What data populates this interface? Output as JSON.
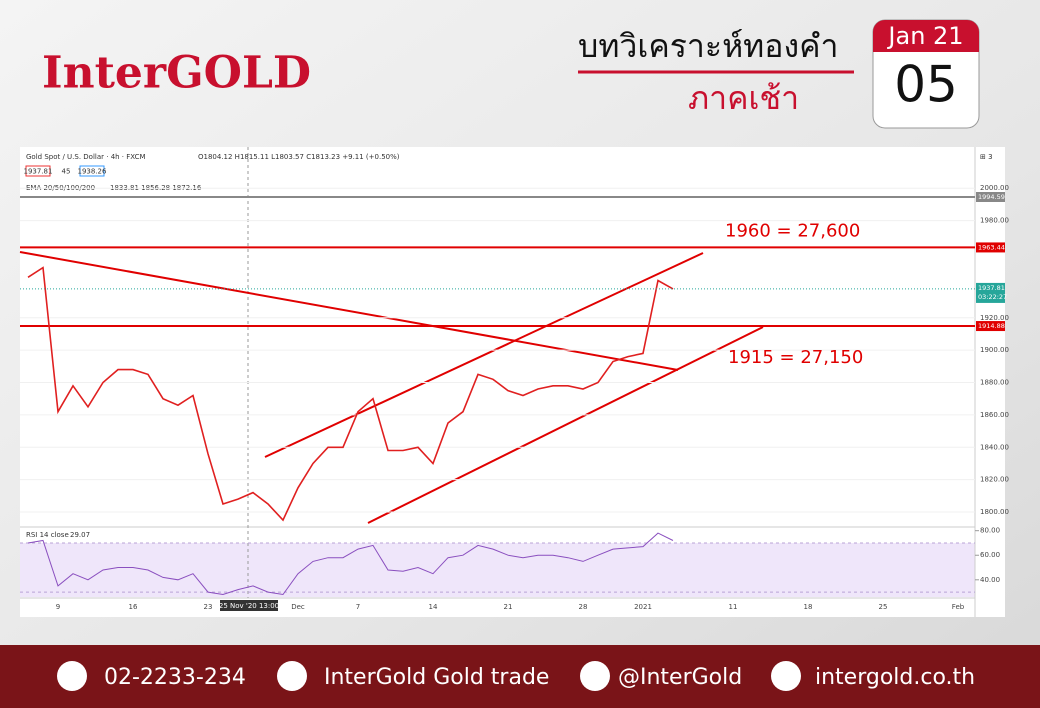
{
  "header": {
    "brand": "InterGOLD",
    "title": "บทวิเคราะห์ทองคำ",
    "subtitle": "ภาคเช้า",
    "month": "Jan 21",
    "day": "05"
  },
  "toolbar": {
    "symbol": "Gold Spot / U.S. Dollar · 4h · FXCM",
    "ohlc": "O1804.12 H1815.11 L1803.57 C1813.23 +9.11 (+0.50%)",
    "bid": "1937.81",
    "spread": "45",
    "ask": "1938.26",
    "ema_label": "EMA 20/50/100/200",
    "ema_values": "1833.81  1856.28  1872.16",
    "countdown": "03:22:27",
    "crosshair_label": "25 Nov '20   13:00",
    "rsi_label": "RSI 14 close",
    "rsi_readout": 29.07,
    "scale_mode": "⊞ 3"
  },
  "chart_data": {
    "type": "line",
    "color": "#e02020",
    "categories": [
      null,
      null,
      "9",
      null,
      null,
      null,
      null,
      "16",
      null,
      null,
      null,
      null,
      "23",
      null,
      null,
      null,
      null,
      null,
      "Dec",
      null,
      null,
      null,
      "7",
      null,
      null,
      null,
      null,
      "14",
      null,
      null,
      null,
      null,
      "21",
      null,
      null,
      null,
      null,
      "28",
      null,
      null,
      null,
      "2021",
      null,
      null,
      null,
      null,
      null,
      "11",
      null,
      null,
      null,
      null,
      "18",
      null,
      null,
      null,
      null,
      "25",
      null,
      null,
      null,
      null,
      "Feb"
    ],
    "values": [
      1945,
      1951,
      1862,
      1878,
      1865,
      1880,
      1888,
      1888,
      1885,
      1870,
      1866,
      1872,
      1836,
      1805,
      1808,
      1812,
      1805,
      1795,
      1815,
      1830,
      1840,
      1840,
      1862,
      1870,
      1838,
      1838,
      1840,
      1830,
      1855,
      1862,
      1885,
      1882,
      1875,
      1872,
      1876,
      1878,
      1878,
      1876,
      1880,
      1893,
      1896,
      1898,
      1943,
      1937.81,
      null,
      null,
      null,
      null,
      null,
      null,
      null,
      null,
      null,
      null,
      null,
      null,
      null,
      null,
      null,
      null,
      null,
      null,
      null
    ],
    "ylim": [
      1792,
      2023
    ],
    "yticks": [
      {
        "value": 1800,
        "label": "1800.00"
      },
      {
        "value": 1820,
        "label": "1820.00"
      },
      {
        "value": 1840,
        "label": "1840.00"
      },
      {
        "value": 1860,
        "label": "1860.00"
      },
      {
        "value": 1880,
        "label": "1880.00"
      },
      {
        "value": 1900,
        "label": "1900.00"
      },
      {
        "value": 1920,
        "label": "1920.00"
      },
      {
        "value": 1980,
        "label": "1980.00"
      },
      {
        "value": 2000,
        "label": "2000.00"
      }
    ],
    "levels": [
      {
        "value": 1963.44,
        "color": "#e00000",
        "annotation": "1960 = 27,600"
      },
      {
        "value": 1914.88,
        "color": "#e00000",
        "annotation": "1915 = 27,150"
      },
      {
        "value": 1994.59,
        "color": "#888888"
      }
    ],
    "rsi": {
      "color": "#8a4fbf",
      "values": [
        70,
        72,
        35,
        45,
        40,
        48,
        50,
        50,
        48,
        42,
        40,
        45,
        30,
        28,
        32,
        35,
        30,
        28,
        45,
        55,
        58,
        58,
        65,
        68,
        48,
        47,
        50,
        45,
        58,
        60,
        68,
        65,
        60,
        58,
        60,
        60,
        58,
        55,
        60,
        65,
        66,
        67,
        78,
        72,
        null,
        null,
        null,
        null,
        null,
        null,
        null,
        null,
        null,
        null,
        null,
        null,
        null,
        null,
        null,
        null,
        null,
        null,
        null
      ],
      "ylim": [
        26,
        83
      ],
      "band": [
        30,
        70
      ],
      "yticks": [
        {
          "value": 40,
          "label": "40.00"
        },
        {
          "value": 60,
          "label": "60.00"
        },
        {
          "value": 80,
          "label": "80.00"
        }
      ]
    }
  },
  "footer": {
    "phone": "02-2233-234",
    "facebook": "InterGold Gold trade",
    "line": "@InterGold",
    "website": "intergold.co.th"
  }
}
